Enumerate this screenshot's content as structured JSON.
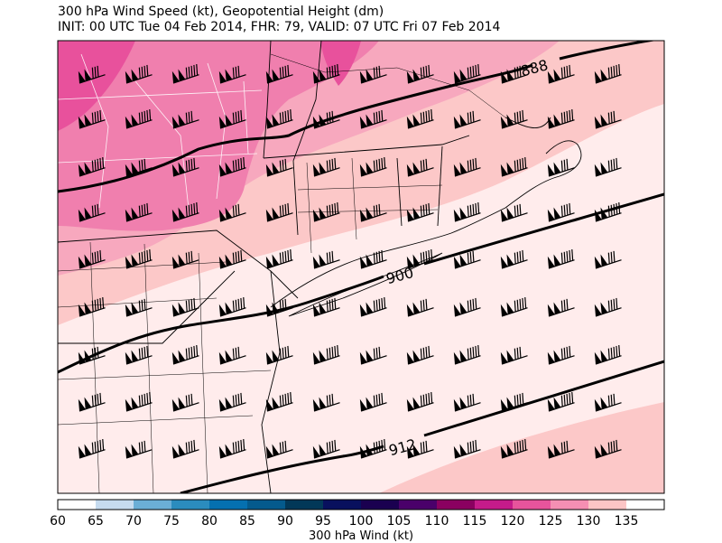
{
  "title_line1": "300 hPa Wind Speed (kt), Geopotential Height (dm)",
  "title_line2": "INIT: 00 UTC Tue 04 Feb 2014, FHR: 79, VALID: 07 UTC Fri 07 Feb 2014",
  "colorbar": {
    "label": "300 hPa Wind (kt)",
    "ticks": [
      "60",
      "65",
      "70",
      "75",
      "80",
      "85",
      "90",
      "95",
      "100",
      "105",
      "110",
      "115",
      "120",
      "125",
      "130",
      "135"
    ],
    "colors": [
      "#ffffff",
      "#c6dbef",
      "#6baed6",
      "#2b8cbe",
      "#0570b0",
      "#045a8d",
      "#023858",
      "#08105e",
      "#1a0050",
      "#4a006a",
      "#8a0060",
      "#c51b8a",
      "#e7549c",
      "#f58fb3",
      "#fcc5c5",
      "#ffffff"
    ]
  },
  "contours": [
    {
      "label": "888"
    },
    {
      "label": "900"
    },
    {
      "label": "912"
    }
  ],
  "wind_barbs": {
    "glyph": "wind-barb-icon",
    "direction": "from west-southwest"
  }
}
